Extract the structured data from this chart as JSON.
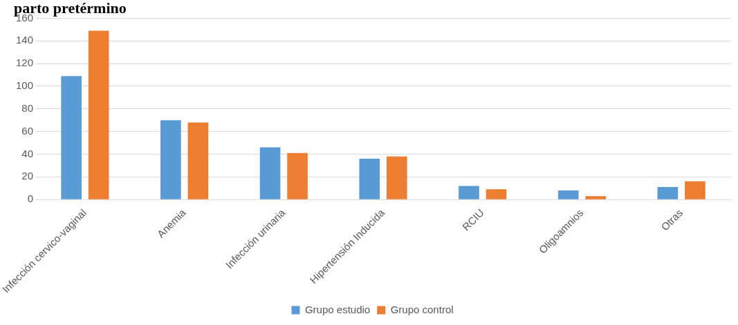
{
  "chart_data": {
    "type": "bar",
    "title": "parto pretérmino",
    "categories": [
      "Infección cervico-vaginal",
      "Anemia",
      "Infección urinaria",
      "Hipertensión Inducida",
      "RCIU",
      "Oligoamnios",
      "Otras"
    ],
    "series": [
      {
        "name": "Grupo estudio",
        "color": "#5b9bd5",
        "values": [
          109,
          70,
          46,
          36,
          12,
          8,
          11
        ]
      },
      {
        "name": "Grupo control",
        "color": "#ed7d31",
        "values": [
          149,
          68,
          41,
          38,
          9,
          3,
          16
        ]
      }
    ],
    "ylim": [
      0,
      160
    ],
    "yticks": [
      0,
      20,
      40,
      60,
      80,
      100,
      120,
      140,
      160
    ],
    "grid": "y",
    "legend": "bottom"
  }
}
